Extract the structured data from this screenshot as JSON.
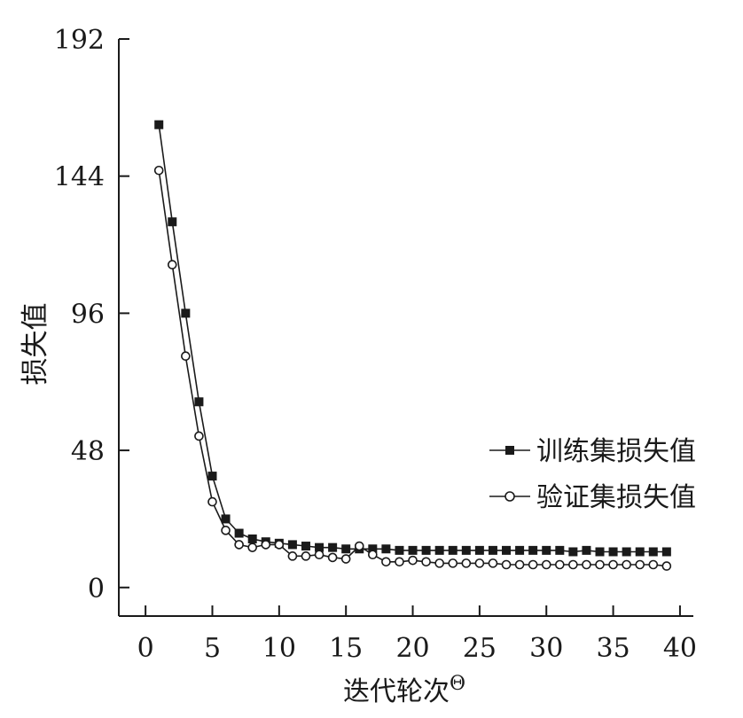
{
  "chart_data": {
    "type": "line",
    "title": "",
    "xlabel": "迭代轮次",
    "xlabel_symbol": "Θ",
    "ylabel": "损失值",
    "xlim": [
      -2,
      41
    ],
    "ylim": [
      -10,
      192
    ],
    "xticks": [
      0,
      5,
      10,
      15,
      20,
      25,
      30,
      35,
      40
    ],
    "yticks": [
      0,
      48,
      96,
      144,
      192
    ],
    "grid": false,
    "legend_position": "right",
    "series": [
      {
        "name": "训练集损失值",
        "marker": "square-filled",
        "x": [
          1,
          2,
          3,
          4,
          5,
          6,
          7,
          8,
          9,
          10,
          11,
          12,
          13,
          14,
          15,
          16,
          17,
          18,
          19,
          20,
          21,
          22,
          23,
          24,
          25,
          26,
          27,
          28,
          29,
          30,
          31,
          32,
          33,
          34,
          35,
          36,
          37,
          38,
          39
        ],
        "y": [
          162,
          128,
          96,
          65,
          39,
          24,
          19,
          17,
          16,
          15.5,
          15,
          14.5,
          14,
          14,
          13.5,
          13.5,
          13.5,
          13.5,
          13,
          13,
          13,
          13,
          13,
          13,
          13,
          13,
          13,
          13,
          13,
          13,
          13,
          12.5,
          13,
          12.5,
          12.5,
          12.5,
          12.5,
          12.5,
          12.5
        ]
      },
      {
        "name": "验证集损失值",
        "marker": "circle-open",
        "x": [
          1,
          2,
          3,
          4,
          5,
          6,
          7,
          8,
          9,
          10,
          11,
          12,
          13,
          14,
          15,
          16,
          17,
          18,
          19,
          20,
          21,
          22,
          23,
          24,
          25,
          26,
          27,
          28,
          29,
          30,
          31,
          32,
          33,
          34,
          35,
          36,
          37,
          38,
          39
        ],
        "y": [
          146,
          113,
          81,
          53,
          30,
          20,
          15,
          14,
          15,
          15,
          11,
          11,
          11.5,
          10.5,
          10,
          14.5,
          11.5,
          9,
          9,
          9.5,
          9,
          8.5,
          8.5,
          8.5,
          8.5,
          8.5,
          8,
          8,
          8,
          8,
          8,
          8,
          8,
          8,
          8,
          8,
          8,
          8,
          7.5
        ]
      }
    ]
  }
}
